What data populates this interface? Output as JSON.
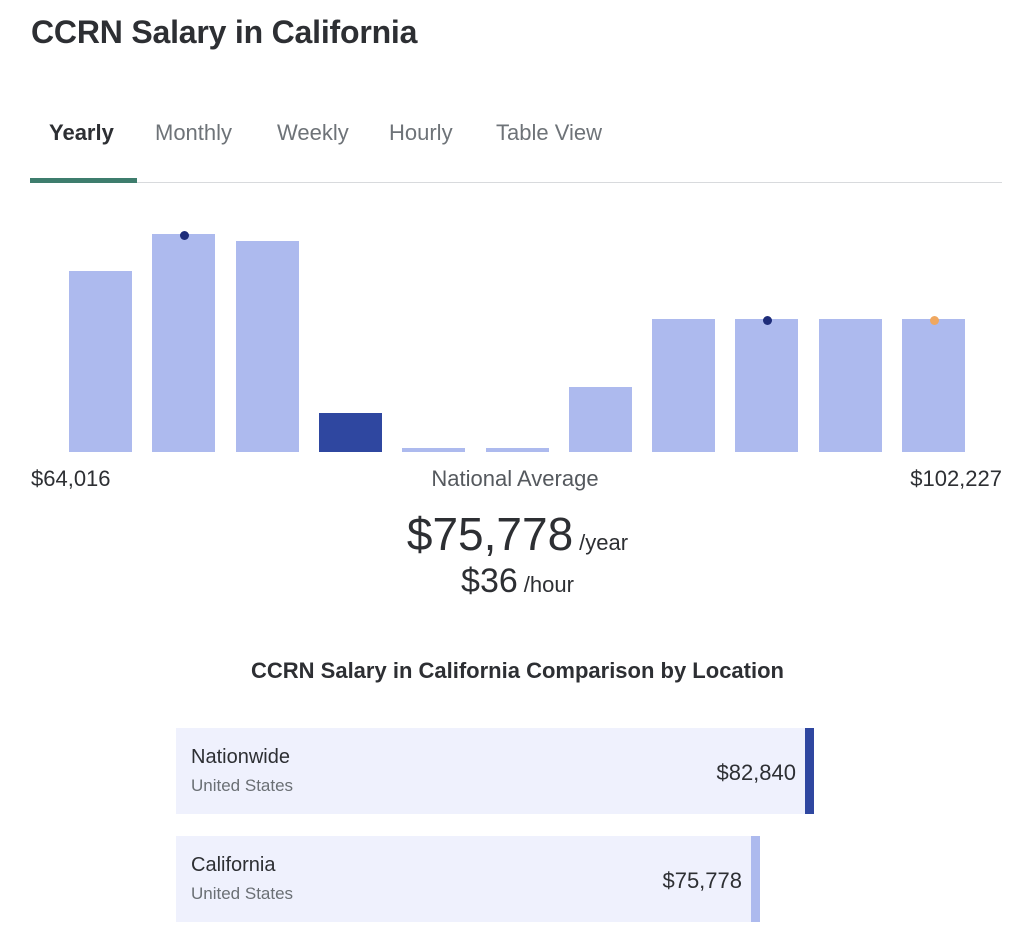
{
  "page": {
    "title": "CCRN Salary in California"
  },
  "tabs": [
    {
      "label": "Yearly",
      "active": true
    },
    {
      "label": "Monthly",
      "active": false
    },
    {
      "label": "Weekly",
      "active": false
    },
    {
      "label": "Hourly",
      "active": false
    },
    {
      "label": "Table View",
      "active": false
    }
  ],
  "colors": {
    "accent_tab": "#3e7d6d",
    "bar": "#adbaee",
    "bar_highlight": "#2f47a0",
    "dot_dark": "#1e2d7a",
    "dot_orange": "#f0a860"
  },
  "chart_data": {
    "type": "bar",
    "values": [
      0.83,
      1.0,
      0.97,
      0.18,
      0.02,
      0.02,
      0.3,
      0.61,
      0.61,
      0.61,
      0.61
    ],
    "highlight_index": 3,
    "markers": [
      {
        "index": 1,
        "color": "dark"
      },
      {
        "index": 8,
        "color": "dark"
      },
      {
        "index": 10,
        "color": "orange"
      }
    ],
    "range_min": "$64,016",
    "range_max": "$102,227",
    "center_label": "National Average"
  },
  "salary": {
    "yearly": "$75,778",
    "yearly_unit": "/year",
    "hourly": "$36",
    "hourly_unit": "/hour"
  },
  "comparison": {
    "title": "CCRN Salary in California Comparison by Location",
    "rows": [
      {
        "name": "Nationwide",
        "sub": "United States",
        "value": "$82,840",
        "fraction": 1.0,
        "accent": "#2f47a0"
      },
      {
        "name": "California",
        "sub": "United States",
        "value": "$75,778",
        "fraction": 0.915,
        "accent": "#adbaee"
      }
    ]
  }
}
